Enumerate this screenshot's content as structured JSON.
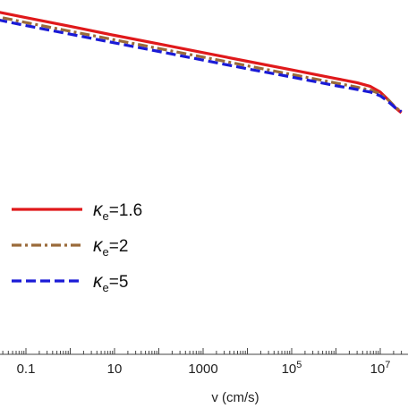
{
  "chart_data": {
    "type": "line",
    "title": "",
    "xlabel": "v (cm/s)",
    "ylabel": "",
    "x_scale": "log",
    "xlim": [
      0.011,
      30000000
    ],
    "grid": false,
    "legend_position": "middle-left",
    "x_ticks": [
      {
        "value": 0.1,
        "label": "0.1"
      },
      {
        "value": 10,
        "label": "10"
      },
      {
        "value": 1000,
        "label": "1000"
      },
      {
        "value": 100000,
        "label": "10",
        "sup": "5"
      },
      {
        "value": 10000000,
        "label": "10",
        "sup": "7"
      }
    ],
    "series": [
      {
        "name": "κe=1.6",
        "legend_main": "κ",
        "legend_sub": "e",
        "legend_value": "=1.6",
        "color": "#e0191b",
        "dash": "solid",
        "x": [
          0.011,
          0.1,
          1,
          10,
          100,
          1000,
          10000,
          100000,
          1000000,
          3000000,
          6000000,
          10000000,
          15000000,
          22000000,
          30000000
        ],
        "y": [
          0.976,
          0.953,
          0.93,
          0.906,
          0.883,
          0.86,
          0.837,
          0.814,
          0.791,
          0.78,
          0.77,
          0.755,
          0.735,
          0.713,
          0.7
        ]
      },
      {
        "name": "κe=2",
        "legend_main": "κ",
        "legend_sub": "e",
        "legend_value": "=2",
        "color": "#9a6a3a",
        "dash": "dashdot",
        "x": [
          0.011,
          0.1,
          1,
          10,
          100,
          1000,
          10000,
          100000,
          1000000,
          3000000,
          6000000,
          10000000,
          15000000,
          22000000,
          30000000
        ],
        "y": [
          0.963,
          0.94,
          0.917,
          0.894,
          0.871,
          0.848,
          0.825,
          0.802,
          0.779,
          0.768,
          0.76,
          0.75,
          0.735,
          0.715,
          0.702
        ]
      },
      {
        "name": "κe=5",
        "legend_main": "κ",
        "legend_sub": "e",
        "legend_value": "=5",
        "color": "#1a1ad6",
        "dash": "dashed",
        "x": [
          0.011,
          0.1,
          1,
          10,
          100,
          1000,
          10000,
          100000,
          1000000,
          3000000,
          6000000,
          10000000,
          15000000,
          22000000,
          30000000
        ],
        "y": [
          0.955,
          0.932,
          0.909,
          0.886,
          0.863,
          0.84,
          0.817,
          0.795,
          0.772,
          0.762,
          0.755,
          0.745,
          0.73,
          0.713,
          0.703
        ]
      }
    ]
  }
}
